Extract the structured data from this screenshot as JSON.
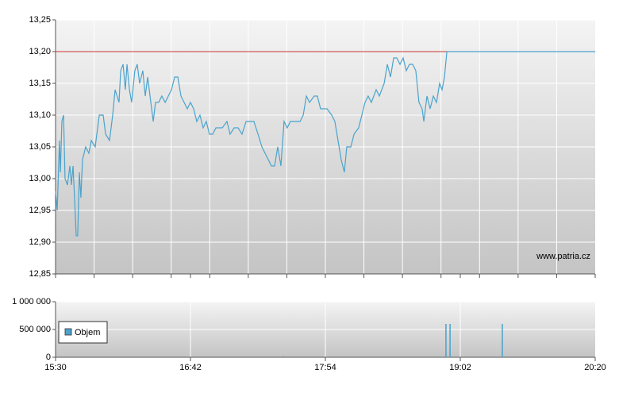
{
  "chart_data": [
    {
      "type": "line",
      "annotation": "www.patria.cz",
      "x": [
        0,
        0.9,
        2.1,
        2.6,
        3.4,
        4.3,
        5.1,
        6.4,
        7.7,
        8.5,
        9.4,
        10.2,
        11.1,
        11.9,
        12.8,
        13.6,
        14.5,
        16.2,
        17.9,
        19.2,
        21.3,
        23.5,
        25.6,
        26.9,
        29.0,
        30.7,
        32.0,
        34.1,
        35.0,
        36.3,
        37.5,
        38.4,
        39.7,
        40.9,
        42.6,
        43.9,
        45.2,
        46.9,
        48.2,
        49.5,
        51.2,
        52.5,
        53.7,
        55.4,
        57.1,
        58.9,
        60.6,
        62.3,
        64.0,
        65.7,
        67.4,
        69.1,
        70.8,
        72.5,
        74.2,
        75.9,
        77.6,
        79.3,
        81.0,
        82.7,
        84.4,
        86.2,
        89.6,
        92.1,
        93.8,
        96.0,
        98.1,
        100.2,
        102.4,
        106.6,
        108.8,
        110.9,
        112.6,
        114.3,
        116.0,
        117.7,
        119.4,
        121.1,
        122.8,
        124.5,
        126.2,
        128.8,
        131.4,
        133.1,
        134.8,
        136.5,
        139.0,
        140.7,
        142.4,
        145.9,
        148.4,
        150.1,
        151.8,
        153.5,
        155.2,
        156.5,
        158.7,
        160.4,
        162.9,
        164.6,
        166.3,
        168.0,
        169.7,
        172.3,
        174.0,
        176.6,
        178.3,
        180.0,
        181.7,
        183.4,
        185.1,
        186.8,
        188.5,
        190.2,
        191.9,
        193.6,
        195.3,
        197.0,
        197.9,
        199.6,
        201.3,
        203.0,
        204.7,
        206.4,
        207.7,
        209.0,
        210.3,
        290
      ],
      "series": [
        {
          "color": "#4aa3cc",
          "values": [
            12.98,
            12.95,
            13.06,
            13.01,
            13.09,
            13.1,
            13.0,
            12.99,
            13.02,
            12.99,
            13.02,
            12.97,
            12.91,
            12.91,
            13.01,
            12.97,
            13.03,
            13.05,
            13.04,
            13.06,
            13.05,
            13.1,
            13.1,
            13.07,
            13.06,
            13.1,
            13.14,
            13.12,
            13.17,
            13.18,
            13.14,
            13.18,
            13.14,
            13.12,
            13.17,
            13.18,
            13.15,
            13.17,
            13.13,
            13.16,
            13.12,
            13.09,
            13.12,
            13.12,
            13.13,
            13.12,
            13.13,
            13.14,
            13.16,
            13.16,
            13.13,
            13.12,
            13.11,
            13.12,
            13.11,
            13.09,
            13.1,
            13.08,
            13.09,
            13.07,
            13.07,
            13.08,
            13.08,
            13.09,
            13.07,
            13.08,
            13.08,
            13.07,
            13.09,
            13.09,
            13.07,
            13.05,
            13.04,
            13.03,
            13.02,
            13.02,
            13.05,
            13.02,
            13.09,
            13.08,
            13.09,
            13.09,
            13.09,
            13.1,
            13.13,
            13.12,
            13.13,
            13.13,
            13.11,
            13.11,
            13.1,
            13.09,
            13.06,
            13.03,
            13.01,
            13.05,
            13.05,
            13.07,
            13.08,
            13.1,
            13.12,
            13.13,
            13.12,
            13.14,
            13.13,
            13.15,
            13.18,
            13.16,
            13.19,
            13.19,
            13.18,
            13.19,
            13.17,
            13.18,
            13.18,
            13.17,
            13.12,
            13.11,
            13.09,
            13.13,
            13.11,
            13.13,
            13.12,
            13.15,
            13.14,
            13.16,
            13.2,
            13.2
          ]
        }
      ],
      "reference_line": {
        "value": 13.2,
        "x_end": 210.3,
        "color": "#cc3333"
      },
      "xlim": [
        0,
        290
      ],
      "ylim": [
        12.85,
        13.25
      ],
      "yticks": [
        {
          "value": 12.85,
          "label": "12,85"
        },
        {
          "value": 12.9,
          "label": "12,90"
        },
        {
          "value": 12.95,
          "label": "12,95"
        },
        {
          "value": 13.0,
          "label": "13,00"
        },
        {
          "value": 13.05,
          "label": "13,05"
        },
        {
          "value": 13.1,
          "label": "13,10"
        },
        {
          "value": 13.15,
          "label": "13,15"
        },
        {
          "value": 13.2,
          "label": "13,20"
        },
        {
          "value": 13.25,
          "label": "13,25"
        }
      ],
      "grid": true
    },
    {
      "type": "bar",
      "x": [
        122.4,
        209.8,
        212.0,
        240.1
      ],
      "series": [
        {
          "name": "Objem",
          "color": "#4aa3cc",
          "values": [
            20000,
            600000,
            600000,
            600000
          ]
        }
      ],
      "xlim": [
        0,
        290
      ],
      "xticks": [
        {
          "value": 0,
          "label": "15:30"
        },
        {
          "value": 72.5,
          "label": "16:42"
        },
        {
          "value": 145,
          "label": "17:54"
        },
        {
          "value": 217.5,
          "label": "19:02"
        },
        {
          "value": 290,
          "label": "20:20"
        }
      ],
      "ylim": [
        0,
        1000000
      ],
      "yticks": [
        0,
        {
          "value": 500000,
          "label": "500 000"
        },
        {
          "value": 1000000,
          "label": "1 000 000"
        }
      ],
      "legend": "top-left",
      "grid": true
    }
  ]
}
